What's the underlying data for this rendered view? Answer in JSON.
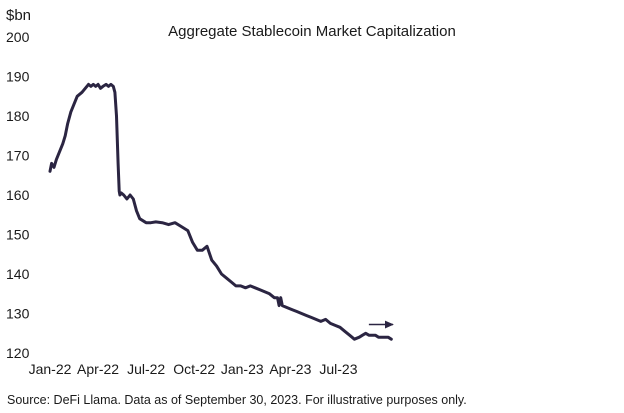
{
  "chart_data": {
    "type": "line",
    "title": "Aggregate Stablecoin Market Capitalization",
    "ylabel": "$bn",
    "xlabel": "",
    "ylim": [
      120,
      200
    ],
    "yticks": [
      120,
      130,
      140,
      150,
      160,
      170,
      180,
      190,
      200
    ],
    "xlim": [
      0,
      34.2
    ],
    "xticks": [
      {
        "x": 0,
        "label": "Jan-22"
      },
      {
        "x": 3,
        "label": "Apr-22"
      },
      {
        "x": 6,
        "label": "Jul-22"
      },
      {
        "x": 9,
        "label": "Oct-22"
      },
      {
        "x": 12,
        "label": "Jan-23"
      },
      {
        "x": 15,
        "label": "Apr-23"
      },
      {
        "x": 18,
        "label": "Jul-23"
      }
    ],
    "grid": false,
    "color": "#2b2542",
    "series": [
      {
        "name": "Aggregate Stablecoin Market Capitalization",
        "x": [
          0.0,
          0.1,
          0.25,
          0.4,
          0.6,
          0.8,
          0.95,
          1.1,
          1.3,
          1.5,
          1.7,
          1.85,
          2.0,
          2.2,
          2.4,
          2.55,
          2.7,
          2.85,
          3.0,
          3.15,
          3.3,
          3.5,
          3.65,
          3.8,
          3.95,
          4.05,
          4.15,
          4.25,
          4.32,
          4.36,
          4.45,
          4.6,
          4.8,
          5.0,
          5.2,
          5.4,
          5.6,
          5.8,
          6.0,
          6.3,
          6.6,
          7.0,
          7.4,
          7.8,
          8.2,
          8.6,
          8.9,
          9.2,
          9.5,
          9.8,
          10.1,
          10.4,
          10.7,
          11.0,
          11.3,
          11.6,
          11.9,
          12.2,
          12.5,
          12.8,
          13.1,
          13.4,
          13.7,
          14.0,
          14.2,
          14.3,
          14.4,
          14.5,
          14.8,
          15.1,
          15.4,
          15.7,
          16.0,
          16.3,
          16.6,
          16.9,
          17.2,
          17.5,
          17.8,
          18.1,
          18.4,
          18.7,
          19.0,
          19.3,
          19.5,
          19.7,
          19.9,
          20.1,
          20.3,
          20.5,
          20.8,
          21.1,
          21.3
        ],
        "values": [
          166,
          168,
          167,
          169,
          171,
          173,
          175,
          178,
          181,
          183,
          185,
          185.5,
          186,
          187,
          188,
          187.5,
          188,
          187.5,
          188,
          187,
          187.5,
          188,
          187.5,
          188,
          187.5,
          186,
          180,
          168,
          161,
          160,
          160.5,
          160,
          159,
          160,
          159,
          156,
          154,
          153.5,
          153,
          153,
          153.2,
          153,
          152.5,
          153,
          152,
          151,
          148,
          146,
          146,
          147,
          143.5,
          142,
          140,
          139,
          138,
          137,
          137,
          136.5,
          137,
          136.5,
          136,
          135.5,
          135,
          134,
          134,
          132,
          134,
          132,
          131.5,
          131,
          130.5,
          130,
          129.5,
          129,
          128.5,
          128,
          128.5,
          127.5,
          127,
          126.5,
          125.5,
          124.5,
          123.5,
          124,
          124.5,
          125,
          124.5,
          124.5,
          124.5,
          124,
          124,
          124,
          123.5
        ]
      }
    ],
    "annotations": [
      {
        "type": "arrow",
        "from": {
          "x": 19.9,
          "y": 127.2
        },
        "to": {
          "x": 21.4,
          "y": 127.2
        },
        "label": ""
      }
    ],
    "source": "Source: DeFi Llama. Data as of September 30, 2023. For illustrative purposes only."
  }
}
